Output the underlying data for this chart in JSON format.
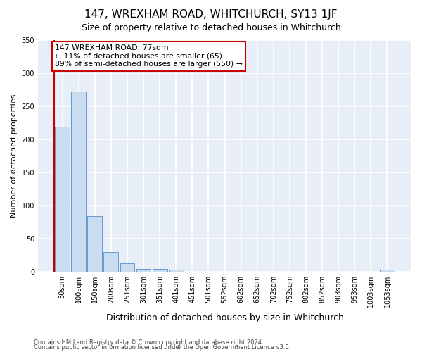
{
  "title": "147, WREXHAM ROAD, WHITCHURCH, SY13 1JF",
  "subtitle": "Size of property relative to detached houses in Whitchurch",
  "xlabel": "Distribution of detached houses by size in Whitchurch",
  "ylabel": "Number of detached properties",
  "bar_color": "#c9dcf0",
  "bar_edge_color": "#6699cc",
  "background_color": "#e8eef8",
  "categories": [
    "50sqm",
    "100sqm",
    "150sqm",
    "200sqm",
    "251sqm",
    "301sqm",
    "351sqm",
    "401sqm",
    "451sqm",
    "501sqm",
    "552sqm",
    "602sqm",
    "652sqm",
    "702sqm",
    "752sqm",
    "802sqm",
    "852sqm",
    "903sqm",
    "953sqm",
    "1003sqm",
    "1053sqm"
  ],
  "values": [
    219,
    272,
    84,
    30,
    13,
    4,
    4,
    3,
    0,
    0,
    0,
    0,
    0,
    0,
    0,
    0,
    0,
    0,
    0,
    0,
    3
  ],
  "ylim": [
    0,
    350
  ],
  "yticks": [
    0,
    50,
    100,
    150,
    200,
    250,
    300,
    350
  ],
  "annotation_text": "147 WREXHAM ROAD: 77sqm\n← 11% of detached houses are smaller (65)\n89% of semi-detached houses are larger (550) →",
  "vline_x": -0.5,
  "vline_color": "#cc0000",
  "box_color": "#ffffff",
  "box_edge_color": "#cc0000",
  "title_fontsize": 11,
  "subtitle_fontsize": 9,
  "ylabel_fontsize": 8,
  "xlabel_fontsize": 9,
  "tick_fontsize": 7,
  "footnote1": "Contains HM Land Registry data © Crown copyright and database right 2024.",
  "footnote2": "Contains public sector information licensed under the Open Government Licence v3.0."
}
